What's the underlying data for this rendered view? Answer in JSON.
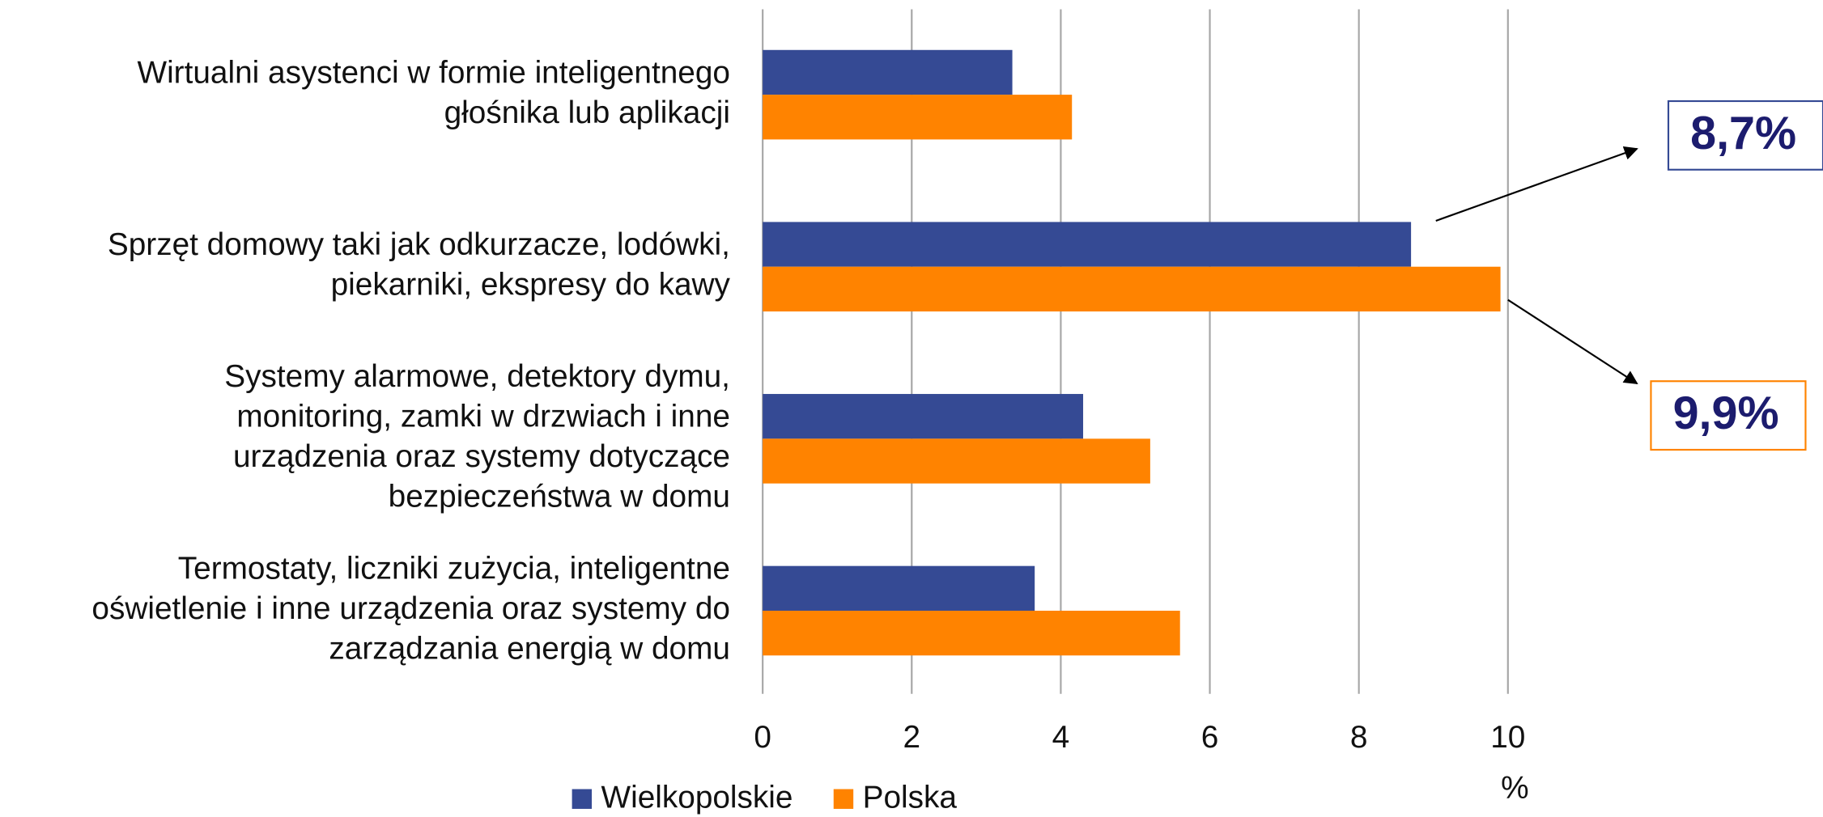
{
  "chart_data": {
    "type": "barh",
    "categories": [
      "Wirtualni asystenci w formie inteligentnego\ngłośnika lub aplikacji",
      "Sprzęt domowy taki jak odkurzacze, lodówki,\npiekarniki, ekspresy do kawy",
      "Systemy alarmowe, detektory dymu,\nmonitoring, zamki w drzwiach i inne\nurządzenia oraz systemy dotyczące\nbezpieczeństwa w domu",
      "Termostaty, liczniki zużycia, inteligentne\noświetlenie i inne urządzenia oraz systemy do\nzarządzania energią w domu"
    ],
    "series": [
      {
        "name": "Wielkopolskie",
        "color": "#354a94",
        "values": [
          3.35,
          8.7,
          4.3,
          3.65
        ],
        "value_labels": [
          null,
          "8,7%",
          null,
          null
        ],
        "label_border": "#354a94"
      },
      {
        "name": "Polska",
        "color": "#ff8300",
        "values": [
          4.15,
          9.9,
          5.2,
          5.6
        ],
        "value_labels": [
          null,
          "9,9%",
          null,
          null
        ],
        "label_border": "#ff8300"
      }
    ],
    "xlabel": "%",
    "xlim": [
      0,
      10
    ],
    "xticks": [
      0,
      2,
      4,
      6,
      8,
      10
    ],
    "grid": true,
    "legend": "bottom"
  }
}
